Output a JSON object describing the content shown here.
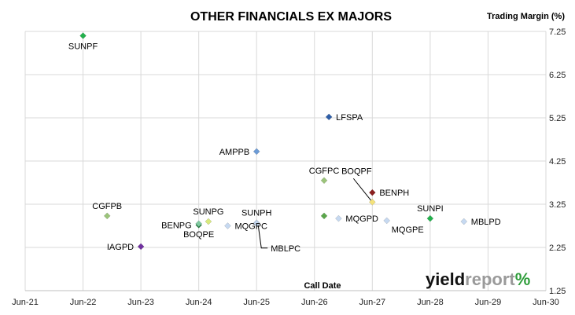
{
  "chart_data": {
    "type": "scatter",
    "title": "OTHER FINANCIALS EX MAJORS",
    "xlabel": "Call Date",
    "ylabel": "Trading Margin (%)",
    "y_axis_side": "right",
    "grid": true,
    "xlim": [
      "Jun-21",
      "Jun-30"
    ],
    "ylim": [
      1.25,
      7.25
    ],
    "x_ticks": [
      "Jun-21",
      "Jun-22",
      "Jun-23",
      "Jun-24",
      "Jun-25",
      "Jun-26",
      "Jun-27",
      "Jun-28",
      "Jun-29",
      "Jun-30"
    ],
    "y_ticks": [
      "1.25",
      "2.25",
      "3.25",
      "4.25",
      "5.25",
      "6.25",
      "7.25"
    ],
    "points": [
      {
        "label": "SUNPF",
        "x": "Jun-22",
        "y": 7.15,
        "color": "#22b14c",
        "label_pos": "below"
      },
      {
        "label": "LFSPA",
        "x": "Sep-26",
        "y": 5.27,
        "color": "#2e5ea8",
        "label_pos": "right"
      },
      {
        "label": "AMPPB",
        "x": "Jun-25",
        "y": 4.47,
        "color": "#6c9bd6",
        "label_pos": "left"
      },
      {
        "label": "CGFPC",
        "x": "Aug-26",
        "y": 3.8,
        "color": "#9bc47a",
        "label_pos": "above"
      },
      {
        "label": "BENPH",
        "x": "Jun-27",
        "y": 3.52,
        "color": "#8b1f1f",
        "label_pos": "right"
      },
      {
        "label": "BOQPF",
        "x": "Jun-27",
        "y": 3.3,
        "color": "#f4e27a",
        "label_pos": "callout-above"
      },
      {
        "label": "CGFPB",
        "x": "Nov-22",
        "y": 2.98,
        "color": "#9bc47a",
        "label_pos": "above"
      },
      {
        "label": "SUNPI",
        "x": "Jun-28",
        "y": 2.92,
        "color": "#22b14c",
        "label_pos": "above"
      },
      {
        "label": "MBLPD",
        "x": "Jan-29",
        "y": 2.85,
        "color": "#c6d9f1",
        "label_pos": "right"
      },
      {
        "label": "MQGPD",
        "x": "Nov-26",
        "y": 2.92,
        "color": "#c6d9f1",
        "label_pos": "right"
      },
      {
        "label": "",
        "x": "Aug-26",
        "y": 2.98,
        "color": "#5aa64a",
        "label_pos": "none"
      },
      {
        "label": "MQGPE",
        "x": "Sep-27",
        "y": 2.87,
        "color": "#c6d9f1",
        "label_pos": "below-right"
      },
      {
        "label": "SUNPH",
        "x": "Jun-25",
        "y": 2.82,
        "color": "#c6d9f1",
        "label_pos": "above"
      },
      {
        "label": "MBLPC",
        "x": "Jun-25",
        "y": 2.8,
        "color": "#c6d9f1",
        "label_pos": "callout-below"
      },
      {
        "label": "SUNPG",
        "x": "Aug-24",
        "y": 2.85,
        "color": "#d9ea7c",
        "label_pos": "above"
      },
      {
        "label": "BENPG",
        "x": "Jun-24",
        "y": 2.77,
        "color": "#1e7a3c",
        "label_pos": "left"
      },
      {
        "label": "BOQPE",
        "x": "Jun-24",
        "y": 2.8,
        "color": "#7fc9a0",
        "label_pos": "below"
      },
      {
        "label": "MQGPC",
        "x": "Dec-24",
        "y": 2.75,
        "color": "#c6d9f1",
        "label_pos": "right"
      },
      {
        "label": "IAGPD",
        "x": "Jun-23",
        "y": 2.27,
        "color": "#7030a0",
        "label_pos": "left"
      }
    ]
  },
  "logo": {
    "part1": "yield",
    "part2": "report",
    "symbol": "%"
  }
}
